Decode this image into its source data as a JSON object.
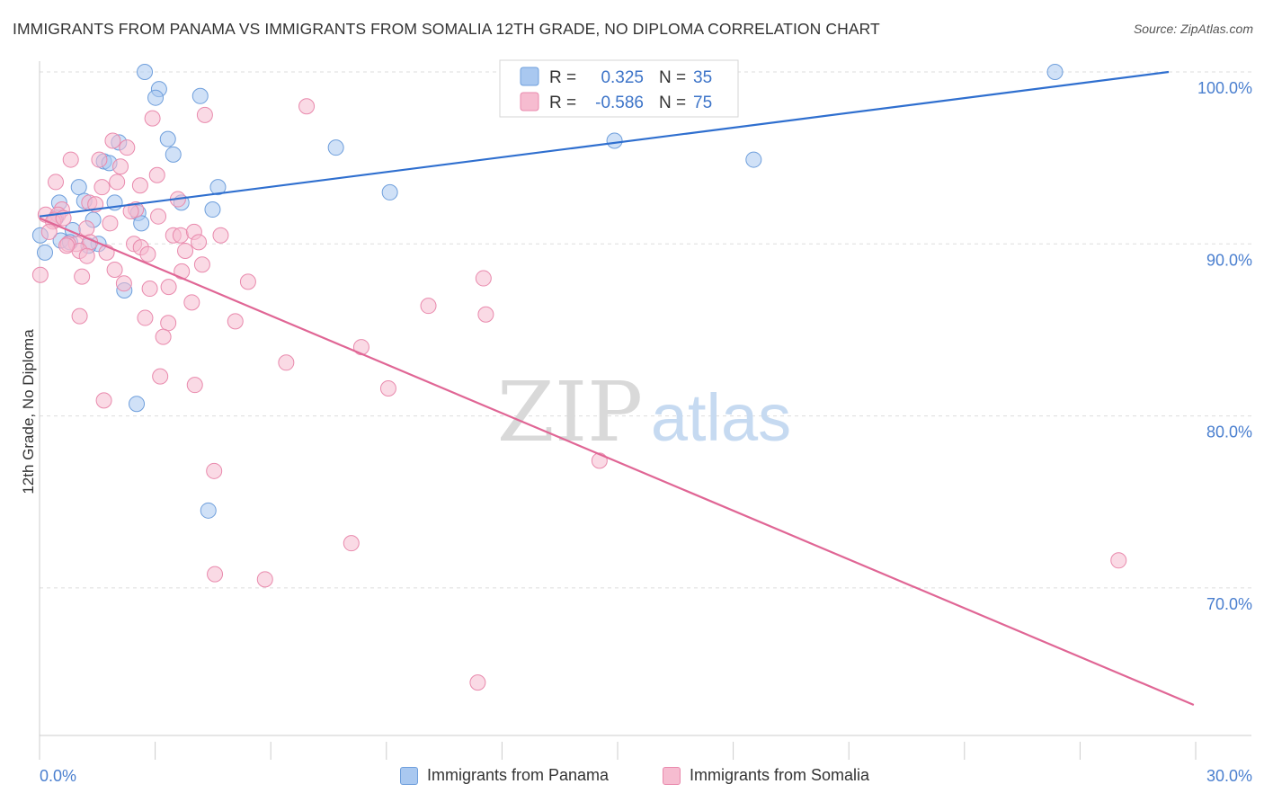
{
  "header": {
    "title": "IMMIGRANTS FROM PANAMA VS IMMIGRANTS FROM SOMALIA 12TH GRADE, NO DIPLOMA CORRELATION CHART",
    "source": "Source: ZipAtlas.com"
  },
  "watermark": {
    "zip": "ZIP",
    "atlas": "atlas"
  },
  "colors": {
    "panama_fill": "#a9c8f0",
    "panama_stroke": "#6f9fdc",
    "panama_line": "#2f6fcf",
    "somalia_fill": "#f6bcd0",
    "somalia_stroke": "#e98aad",
    "somalia_line": "#e06695",
    "axis_label": "#4a7fcf",
    "grid": "#dddddd"
  },
  "legend_top": [
    {
      "r_label": "R =",
      "r_value": "0.325",
      "n_label": "N =",
      "n_value": "35"
    },
    {
      "r_label": "R =",
      "r_value": "-0.586",
      "n_label": "N =",
      "n_value": "75"
    }
  ],
  "legend_bottom": [
    {
      "label": "Immigrants from Panama"
    },
    {
      "label": "Immigrants from Somalia"
    }
  ],
  "chart_data": {
    "type": "scatter",
    "xlabel": "",
    "ylabel": "12th Grade, No Diploma",
    "xlim": [
      0,
      30
    ],
    "ylim": [
      60.5,
      101.5
    ],
    "x_tick_labels": [
      {
        "value": 0,
        "label": "0.0%"
      },
      {
        "value": 30,
        "label": "30.0%"
      }
    ],
    "y_tick_labels": [
      {
        "value": 100,
        "label": "100.0%"
      },
      {
        "value": 90,
        "label": "90.0%"
      },
      {
        "value": 80,
        "label": "80.0%"
      },
      {
        "value": 70,
        "label": "70.0%"
      }
    ],
    "y_gridlines": [
      100,
      90,
      80,
      70
    ],
    "grid": "horizontal dashed",
    "series": [
      {
        "name": "Immigrants from Panama",
        "color": "#a9c8f0",
        "trend": {
          "x": [
            0,
            29.3
          ],
          "y": [
            91.6,
            100.0
          ]
        },
        "points": [
          {
            "x": 2.73,
            "y": 100.0
          },
          {
            "x": 3.1,
            "y": 99.0
          },
          {
            "x": 3.01,
            "y": 98.5
          },
          {
            "x": 4.17,
            "y": 98.6
          },
          {
            "x": 3.33,
            "y": 96.1
          },
          {
            "x": 7.69,
            "y": 95.6
          },
          {
            "x": 14.92,
            "y": 96.0
          },
          {
            "x": 18.53,
            "y": 94.9
          },
          {
            "x": 3.47,
            "y": 95.2
          },
          {
            "x": 1.67,
            "y": 94.8
          },
          {
            "x": 2.06,
            "y": 95.9
          },
          {
            "x": 1.81,
            "y": 94.7
          },
          {
            "x": 1.02,
            "y": 93.3
          },
          {
            "x": 4.63,
            "y": 93.3
          },
          {
            "x": 9.09,
            "y": 93.0
          },
          {
            "x": 0.51,
            "y": 92.4
          },
          {
            "x": 1.16,
            "y": 92.5
          },
          {
            "x": 1.95,
            "y": 92.4
          },
          {
            "x": 3.68,
            "y": 92.4
          },
          {
            "x": 4.49,
            "y": 92.0
          },
          {
            "x": 0.42,
            "y": 91.5
          },
          {
            "x": 1.39,
            "y": 91.4
          },
          {
            "x": 2.56,
            "y": 91.8
          },
          {
            "x": 2.64,
            "y": 91.2
          },
          {
            "x": 0.86,
            "y": 90.8
          },
          {
            "x": 0.02,
            "y": 90.5
          },
          {
            "x": 0.55,
            "y": 90.2
          },
          {
            "x": 0.79,
            "y": 90.1
          },
          {
            "x": 1.53,
            "y": 90.0
          },
          {
            "x": 1.27,
            "y": 89.9
          },
          {
            "x": 0.14,
            "y": 89.5
          },
          {
            "x": 2.2,
            "y": 87.3
          },
          {
            "x": 2.52,
            "y": 80.7
          },
          {
            "x": 4.38,
            "y": 74.5
          },
          {
            "x": 26.35,
            "y": 100.0
          }
        ]
      },
      {
        "name": "Immigrants from Somalia",
        "color": "#f6bcd0",
        "trend": {
          "x": [
            0,
            29.95
          ],
          "y": [
            91.5,
            63.2
          ]
        },
        "points": [
          {
            "x": 6.93,
            "y": 98.0
          },
          {
            "x": 4.29,
            "y": 97.5
          },
          {
            "x": 2.93,
            "y": 97.3
          },
          {
            "x": 1.9,
            "y": 96.0
          },
          {
            "x": 2.27,
            "y": 95.6
          },
          {
            "x": 0.81,
            "y": 94.9
          },
          {
            "x": 1.55,
            "y": 94.9
          },
          {
            "x": 2.1,
            "y": 94.5
          },
          {
            "x": 3.05,
            "y": 94.0
          },
          {
            "x": 0.42,
            "y": 93.6
          },
          {
            "x": 1.62,
            "y": 93.3
          },
          {
            "x": 2.01,
            "y": 93.6
          },
          {
            "x": 2.61,
            "y": 93.4
          },
          {
            "x": 3.59,
            "y": 92.6
          },
          {
            "x": 1.29,
            "y": 92.4
          },
          {
            "x": 0.58,
            "y": 92.0
          },
          {
            "x": 2.5,
            "y": 92.0
          },
          {
            "x": 0.16,
            "y": 91.7
          },
          {
            "x": 0.48,
            "y": 91.7
          },
          {
            "x": 0.39,
            "y": 91.4
          },
          {
            "x": 3.08,
            "y": 91.6
          },
          {
            "x": 1.83,
            "y": 91.2
          },
          {
            "x": 0.35,
            "y": 91.3
          },
          {
            "x": 1.22,
            "y": 90.9
          },
          {
            "x": 3.47,
            "y": 90.5
          },
          {
            "x": 3.66,
            "y": 90.5
          },
          {
            "x": 4.01,
            "y": 90.7
          },
          {
            "x": 4.7,
            "y": 90.5
          },
          {
            "x": 0.95,
            "y": 90.0
          },
          {
            "x": 1.31,
            "y": 90.1
          },
          {
            "x": 0.74,
            "y": 90.0
          },
          {
            "x": 2.45,
            "y": 90.0
          },
          {
            "x": 4.13,
            "y": 90.1
          },
          {
            "x": 1.04,
            "y": 89.6
          },
          {
            "x": 2.63,
            "y": 89.8
          },
          {
            "x": 3.78,
            "y": 89.6
          },
          {
            "x": 1.23,
            "y": 89.3
          },
          {
            "x": 1.74,
            "y": 89.5
          },
          {
            "x": 2.81,
            "y": 89.4
          },
          {
            "x": 4.22,
            "y": 88.8
          },
          {
            "x": 1.95,
            "y": 88.5
          },
          {
            "x": 3.69,
            "y": 88.4
          },
          {
            "x": 1.1,
            "y": 88.1
          },
          {
            "x": 0.02,
            "y": 88.2
          },
          {
            "x": 5.41,
            "y": 87.8
          },
          {
            "x": 2.19,
            "y": 87.7
          },
          {
            "x": 3.35,
            "y": 87.5
          },
          {
            "x": 2.86,
            "y": 87.4
          },
          {
            "x": 11.52,
            "y": 88.0
          },
          {
            "x": 3.95,
            "y": 86.6
          },
          {
            "x": 10.09,
            "y": 86.4
          },
          {
            "x": 1.04,
            "y": 85.8
          },
          {
            "x": 11.58,
            "y": 85.9
          },
          {
            "x": 2.74,
            "y": 85.7
          },
          {
            "x": 5.08,
            "y": 85.5
          },
          {
            "x": 3.34,
            "y": 85.4
          },
          {
            "x": 3.21,
            "y": 84.6
          },
          {
            "x": 8.35,
            "y": 84.0
          },
          {
            "x": 6.4,
            "y": 83.1
          },
          {
            "x": 3.13,
            "y": 82.3
          },
          {
            "x": 4.03,
            "y": 81.8
          },
          {
            "x": 9.05,
            "y": 81.6
          },
          {
            "x": 1.67,
            "y": 80.9
          },
          {
            "x": 14.53,
            "y": 77.4
          },
          {
            "x": 4.53,
            "y": 76.8
          },
          {
            "x": 8.09,
            "y": 72.6
          },
          {
            "x": 4.55,
            "y": 70.8
          },
          {
            "x": 5.85,
            "y": 70.5
          },
          {
            "x": 28.0,
            "y": 71.6
          },
          {
            "x": 11.37,
            "y": 64.5
          },
          {
            "x": 0.25,
            "y": 90.7
          },
          {
            "x": 0.62,
            "y": 91.5
          },
          {
            "x": 1.45,
            "y": 92.3
          },
          {
            "x": 2.37,
            "y": 91.9
          },
          {
            "x": 0.7,
            "y": 89.9
          }
        ]
      }
    ]
  }
}
